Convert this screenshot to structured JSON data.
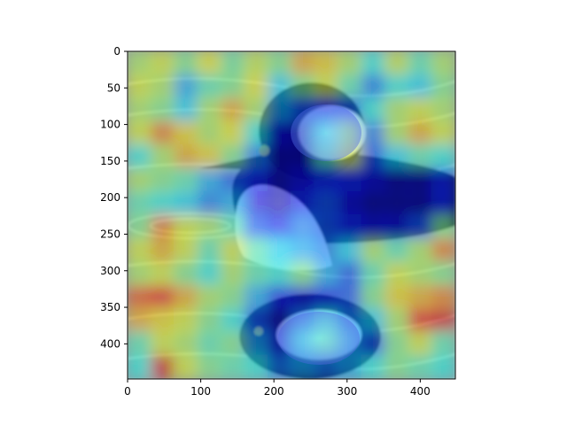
{
  "chart_data": {
    "type": "heatmap",
    "title": "",
    "xlabel": "",
    "ylabel": "",
    "xlim": [
      0,
      448
    ],
    "ylim": [
      448,
      0
    ],
    "xticks": [
      0,
      100,
      200,
      300,
      400
    ],
    "yticks": [
      0,
      50,
      100,
      150,
      200,
      250,
      300,
      350,
      400
    ],
    "xtick_labels": [
      "0",
      "100",
      "200",
      "300",
      "400"
    ],
    "ytick_labels": [
      "0",
      "50",
      "100",
      "150",
      "200",
      "250",
      "300",
      "350",
      "400"
    ],
    "colormap": "jet",
    "overlay_alpha": 0.5,
    "background_image": "hooded-merganser-on-water",
    "grid": false,
    "legend": "none",
    "grid_size": [
      14,
      14
    ],
    "values": [
      [
        0.55,
        0.6,
        0.5,
        0.62,
        0.48,
        0.58,
        0.5,
        0.7,
        0.66,
        0.55,
        0.4,
        0.58,
        0.45,
        0.55
      ],
      [
        0.6,
        0.55,
        0.3,
        0.45,
        0.5,
        0.62,
        0.35,
        0.5,
        0.6,
        0.45,
        0.25,
        0.4,
        0.35,
        0.5
      ],
      [
        0.55,
        0.5,
        0.35,
        0.55,
        0.7,
        0.55,
        0.3,
        0.2,
        0.15,
        0.2,
        0.4,
        0.55,
        0.6,
        0.55
      ],
      [
        0.6,
        0.75,
        0.65,
        0.55,
        0.62,
        0.4,
        0.1,
        0.05,
        0.3,
        0.55,
        0.25,
        0.55,
        0.7,
        0.6
      ],
      [
        0.4,
        0.55,
        0.7,
        0.65,
        0.5,
        0.25,
        0.05,
        0.05,
        0.45,
        0.6,
        0.2,
        0.35,
        0.45,
        0.4
      ],
      [
        0.55,
        0.5,
        0.45,
        0.3,
        0.2,
        0.15,
        0.05,
        0.1,
        0.15,
        0.15,
        0.1,
        0.05,
        0.05,
        0.15
      ],
      [
        0.45,
        0.4,
        0.35,
        0.25,
        0.3,
        0.1,
        0.05,
        0.15,
        0.2,
        0.1,
        0.05,
        0.05,
        0.05,
        0.15
      ],
      [
        0.5,
        0.75,
        0.6,
        0.55,
        0.45,
        0.2,
        0.15,
        0.25,
        0.2,
        0.15,
        0.1,
        0.1,
        0.2,
        0.5
      ],
      [
        0.6,
        0.7,
        0.6,
        0.45,
        0.6,
        0.45,
        0.35,
        0.3,
        0.25,
        0.35,
        0.55,
        0.45,
        0.55,
        0.75
      ],
      [
        0.55,
        0.6,
        0.5,
        0.4,
        0.55,
        0.45,
        0.4,
        0.5,
        0.3,
        0.2,
        0.45,
        0.6,
        0.55,
        0.5
      ],
      [
        0.8,
        0.85,
        0.7,
        0.55,
        0.5,
        0.3,
        0.15,
        0.1,
        0.15,
        0.2,
        0.5,
        0.65,
        0.7,
        0.75
      ],
      [
        0.7,
        0.65,
        0.6,
        0.5,
        0.4,
        0.2,
        0.05,
        0.25,
        0.4,
        0.25,
        0.35,
        0.55,
        0.85,
        0.9
      ],
      [
        0.45,
        0.6,
        0.55,
        0.45,
        0.5,
        0.3,
        0.1,
        0.35,
        0.45,
        0.3,
        0.2,
        0.5,
        0.6,
        0.45
      ],
      [
        0.4,
        0.9,
        0.6,
        0.5,
        0.45,
        0.4,
        0.25,
        0.3,
        0.25,
        0.3,
        0.4,
        0.5,
        0.45,
        0.4
      ]
    ]
  }
}
